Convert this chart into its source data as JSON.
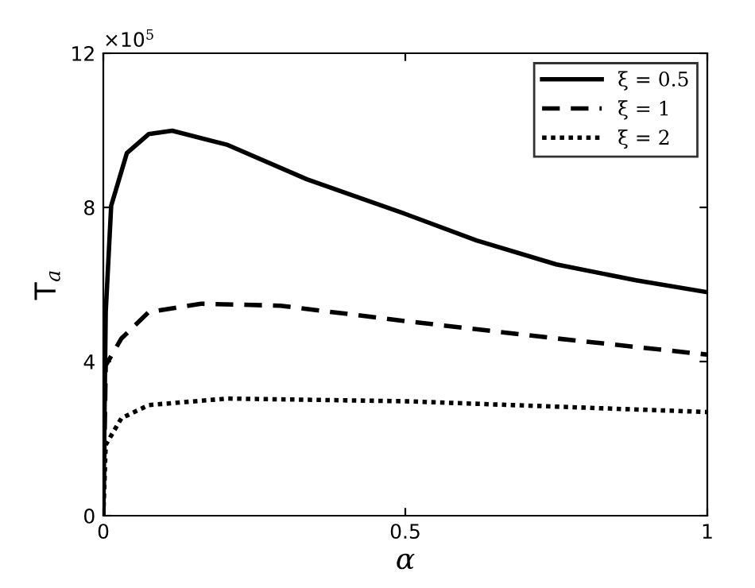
{
  "chart_data": {
    "type": "line",
    "xlabel": "α",
    "ylabel": "T$_{a}$",
    "annotations": [
      "×10$^{5}$"
    ],
    "xlim": [
      0,
      1
    ],
    "ylim": [
      0,
      12
    ],
    "xticks": [
      0,
      0.5,
      1
    ],
    "yticks": [
      0,
      4,
      8,
      12
    ],
    "grid": false,
    "legend": "top right",
    "marker": "none",
    "series": [
      {
        "name": "ξ = 0.5",
        "color": "#000000",
        "line_style": "solid",
        "x": [
          0,
          0.004,
          0.013,
          0.039,
          0.075,
          0.114,
          0.206,
          0.337,
          0.5,
          0.618,
          0.75,
          0.882,
          1
        ],
        "values": [
          0,
          5.28,
          8.04,
          9.41,
          9.9,
          9.99,
          9.62,
          8.73,
          7.83,
          7.14,
          6.52,
          6.11,
          5.8
        ]
      },
      {
        "name": "ξ = 1",
        "color": "#000000",
        "line_style": "dashed",
        "x": [
          0,
          0.004,
          0.03,
          0.075,
          0.162,
          0.293,
          0.5,
          0.75,
          1
        ],
        "values": [
          0,
          3.9,
          4.6,
          5.28,
          5.5,
          5.45,
          5.05,
          4.6,
          4.18
        ]
      },
      {
        "name": "ξ = 2",
        "color": "#000000",
        "line_style": "dotted",
        "x": [
          0,
          0.004,
          0.03,
          0.075,
          0.206,
          0.5,
          0.75,
          1
        ],
        "values": [
          0,
          1.84,
          2.53,
          2.87,
          3.04,
          2.97,
          2.83,
          2.69
        ]
      }
    ]
  }
}
